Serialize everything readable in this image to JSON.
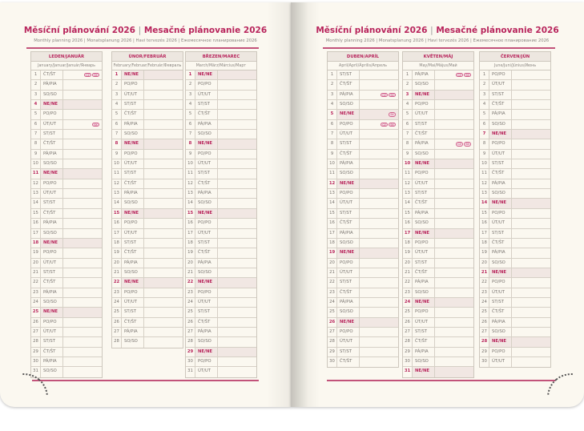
{
  "header": {
    "title_cz": "Měsíční plánování 2026",
    "title_sep": "|",
    "title_sk": "Mesačné plánovanie 2026",
    "subtitle": "Monthly planning 2026 | Monatsplanung 2026 | Havi tervezés 2026 | Ежемесячное планирование 2026"
  },
  "colors": {
    "accent": "#b8255c",
    "sunday_bg": "#f1e7e3",
    "header_bg": "#ede7e0",
    "page": "#fbf8f0"
  },
  "holiday_badge_icon": "country-holiday-badge",
  "months": [
    {
      "name": "LEDEN/JANUÁR",
      "sub": "January/Januar/Január/Январь",
      "holidays": {
        "1": [
          "CZ",
          "SK"
        ],
        "6": [
          "SK"
        ]
      },
      "days": [
        [
          1,
          "ČT/ŠT"
        ],
        [
          2,
          "PÁ/PIA"
        ],
        [
          3,
          "SO/SO"
        ],
        [
          4,
          "NE/NE"
        ],
        [
          5,
          "PO/PO"
        ],
        [
          6,
          "ÚT/UT"
        ],
        [
          7,
          "ST/ST"
        ],
        [
          8,
          "ČT/ŠT"
        ],
        [
          9,
          "PÁ/PIA"
        ],
        [
          10,
          "SO/SO"
        ],
        [
          11,
          "NE/NE"
        ],
        [
          12,
          "PO/PO"
        ],
        [
          13,
          "ÚT/UT"
        ],
        [
          14,
          "ST/ST"
        ],
        [
          15,
          "ČT/ŠT"
        ],
        [
          16,
          "PÁ/PIA"
        ],
        [
          17,
          "SO/SO"
        ],
        [
          18,
          "NE/NE"
        ],
        [
          19,
          "PO/PO"
        ],
        [
          20,
          "ÚT/UT"
        ],
        [
          21,
          "ST/ST"
        ],
        [
          22,
          "ČT/ŠT"
        ],
        [
          23,
          "PÁ/PIA"
        ],
        [
          24,
          "SO/SO"
        ],
        [
          25,
          "NE/NE"
        ],
        [
          26,
          "PO/PO"
        ],
        [
          27,
          "ÚT/UT"
        ],
        [
          28,
          "ST/ST"
        ],
        [
          29,
          "ČT/ŠT"
        ],
        [
          30,
          "PÁ/PIA"
        ],
        [
          31,
          "SO/SO"
        ]
      ]
    },
    {
      "name": "ÚNOR/FEBRUÁR",
      "sub": "February/Februar/Február/Февраль",
      "holidays": {},
      "days": [
        [
          1,
          "NE/NE"
        ],
        [
          2,
          "PO/PO"
        ],
        [
          3,
          "ÚT/UT"
        ],
        [
          4,
          "ST/ST"
        ],
        [
          5,
          "ČT/ŠT"
        ],
        [
          6,
          "PÁ/PIA"
        ],
        [
          7,
          "SO/SO"
        ],
        [
          8,
          "NE/NE"
        ],
        [
          9,
          "PO/PO"
        ],
        [
          10,
          "ÚT/UT"
        ],
        [
          11,
          "ST/ST"
        ],
        [
          12,
          "ČT/ŠT"
        ],
        [
          13,
          "PÁ/PIA"
        ],
        [
          14,
          "SO/SO"
        ],
        [
          15,
          "NE/NE"
        ],
        [
          16,
          "PO/PO"
        ],
        [
          17,
          "ÚT/UT"
        ],
        [
          18,
          "ST/ST"
        ],
        [
          19,
          "ČT/ŠT"
        ],
        [
          20,
          "PÁ/PIA"
        ],
        [
          21,
          "SO/SO"
        ],
        [
          22,
          "NE/NE"
        ],
        [
          23,
          "PO/PO"
        ],
        [
          24,
          "ÚT/UT"
        ],
        [
          25,
          "ST/ST"
        ],
        [
          26,
          "ČT/ŠT"
        ],
        [
          27,
          "PÁ/PIA"
        ],
        [
          28,
          "SO/SO"
        ]
      ]
    },
    {
      "name": "BŘEZEN/MAREC",
      "sub": "March/März/Március/Март",
      "holidays": {},
      "days": [
        [
          1,
          "NE/NE"
        ],
        [
          2,
          "PO/PO"
        ],
        [
          3,
          "ÚT/UT"
        ],
        [
          4,
          "ST/ST"
        ],
        [
          5,
          "ČT/ŠT"
        ],
        [
          6,
          "PÁ/PIA"
        ],
        [
          7,
          "SO/SO"
        ],
        [
          8,
          "NE/NE"
        ],
        [
          9,
          "PO/PO"
        ],
        [
          10,
          "ÚT/UT"
        ],
        [
          11,
          "ST/ST"
        ],
        [
          12,
          "ČT/ŠT"
        ],
        [
          13,
          "PÁ/PIA"
        ],
        [
          14,
          "SO/SO"
        ],
        [
          15,
          "NE/NE"
        ],
        [
          16,
          "PO/PO"
        ],
        [
          17,
          "ÚT/UT"
        ],
        [
          18,
          "ST/ST"
        ],
        [
          19,
          "ČT/ŠT"
        ],
        [
          20,
          "PÁ/PIA"
        ],
        [
          21,
          "SO/SO"
        ],
        [
          22,
          "NE/NE"
        ],
        [
          23,
          "PO/PO"
        ],
        [
          24,
          "ÚT/UT"
        ],
        [
          25,
          "ST/ST"
        ],
        [
          26,
          "ČT/ŠT"
        ],
        [
          27,
          "PÁ/PIA"
        ],
        [
          28,
          "SO/SO"
        ],
        [
          29,
          "NE/NE"
        ],
        [
          30,
          "PO/PO"
        ],
        [
          31,
          "ÚT/UT"
        ]
      ]
    },
    {
      "name": "DUBEN/APRÍL",
      "sub": "April/April/Április/Апрель",
      "holidays": {
        "3": [
          "CZ",
          "SK"
        ],
        "5": [
          "SK"
        ],
        "6": [
          "CZ",
          "SK"
        ]
      },
      "days": [
        [
          1,
          "ST/ST"
        ],
        [
          2,
          "ČT/ŠT"
        ],
        [
          3,
          "PÁ/PIA"
        ],
        [
          4,
          "SO/SO"
        ],
        [
          5,
          "NE/NE"
        ],
        [
          6,
          "PO/PO"
        ],
        [
          7,
          "ÚT/UT"
        ],
        [
          8,
          "ST/ST"
        ],
        [
          9,
          "ČT/ŠT"
        ],
        [
          10,
          "PÁ/PIA"
        ],
        [
          11,
          "SO/SO"
        ],
        [
          12,
          "NE/NE"
        ],
        [
          13,
          "PO/PO"
        ],
        [
          14,
          "ÚT/UT"
        ],
        [
          15,
          "ST/ST"
        ],
        [
          16,
          "ČT/ŠT"
        ],
        [
          17,
          "PÁ/PIA"
        ],
        [
          18,
          "SO/SO"
        ],
        [
          19,
          "NE/NE"
        ],
        [
          20,
          "PO/PO"
        ],
        [
          21,
          "ÚT/UT"
        ],
        [
          22,
          "ST/ST"
        ],
        [
          23,
          "ČT/ŠT"
        ],
        [
          24,
          "PÁ/PIA"
        ],
        [
          25,
          "SO/SO"
        ],
        [
          26,
          "NE/NE"
        ],
        [
          27,
          "PO/PO"
        ],
        [
          28,
          "ÚT/UT"
        ],
        [
          29,
          "ST/ST"
        ],
        [
          30,
          "ČT/ŠT"
        ]
      ]
    },
    {
      "name": "KVĚTEN/MÁJ",
      "sub": "May/Mai/Május/Май",
      "holidays": {
        "1": [
          "CZ",
          "SK"
        ],
        "8": [
          "CZ",
          "SK"
        ]
      },
      "days": [
        [
          1,
          "PÁ/PIA"
        ],
        [
          2,
          "SO/SO"
        ],
        [
          3,
          "NE/NE"
        ],
        [
          4,
          "PO/PO"
        ],
        [
          5,
          "ÚT/UT"
        ],
        [
          6,
          "ST/ST"
        ],
        [
          7,
          "ČT/ŠT"
        ],
        [
          8,
          "PÁ/PIA"
        ],
        [
          9,
          "SO/SO"
        ],
        [
          10,
          "NE/NE"
        ],
        [
          11,
          "PO/PO"
        ],
        [
          12,
          "ÚT/UT"
        ],
        [
          13,
          "ST/ST"
        ],
        [
          14,
          "ČT/ŠT"
        ],
        [
          15,
          "PÁ/PIA"
        ],
        [
          16,
          "SO/SO"
        ],
        [
          17,
          "NE/NE"
        ],
        [
          18,
          "PO/PO"
        ],
        [
          19,
          "ÚT/UT"
        ],
        [
          20,
          "ST/ST"
        ],
        [
          21,
          "ČT/ŠT"
        ],
        [
          22,
          "PÁ/PIA"
        ],
        [
          23,
          "SO/SO"
        ],
        [
          24,
          "NE/NE"
        ],
        [
          25,
          "PO/PO"
        ],
        [
          26,
          "ÚT/UT"
        ],
        [
          27,
          "ST/ST"
        ],
        [
          28,
          "ČT/ŠT"
        ],
        [
          29,
          "PÁ/PIA"
        ],
        [
          30,
          "SO/SO"
        ],
        [
          31,
          "NE/NE"
        ]
      ]
    },
    {
      "name": "ČERVEN/JÚN",
      "sub": "June/Juni/Június/Июнь",
      "holidays": {},
      "days": [
        [
          1,
          "PO/PO"
        ],
        [
          2,
          "ÚT/UT"
        ],
        [
          3,
          "ST/ST"
        ],
        [
          4,
          "ČT/ŠT"
        ],
        [
          5,
          "PÁ/PIA"
        ],
        [
          6,
          "SO/SO"
        ],
        [
          7,
          "NE/NE"
        ],
        [
          8,
          "PO/PO"
        ],
        [
          9,
          "ÚT/UT"
        ],
        [
          10,
          "ST/ST"
        ],
        [
          11,
          "ČT/ŠT"
        ],
        [
          12,
          "PÁ/PIA"
        ],
        [
          13,
          "SO/SO"
        ],
        [
          14,
          "NE/NE"
        ],
        [
          15,
          "PO/PO"
        ],
        [
          16,
          "ÚT/UT"
        ],
        [
          17,
          "ST/ST"
        ],
        [
          18,
          "ČT/ŠT"
        ],
        [
          19,
          "PÁ/PIA"
        ],
        [
          20,
          "SO/SO"
        ],
        [
          21,
          "NE/NE"
        ],
        [
          22,
          "PO/PO"
        ],
        [
          23,
          "ÚT/UT"
        ],
        [
          24,
          "ST/ST"
        ],
        [
          25,
          "ČT/ŠT"
        ],
        [
          26,
          "PÁ/PIA"
        ],
        [
          27,
          "SO/SO"
        ],
        [
          28,
          "NE/NE"
        ],
        [
          29,
          "PO/PO"
        ],
        [
          30,
          "ÚT/UT"
        ]
      ]
    }
  ]
}
